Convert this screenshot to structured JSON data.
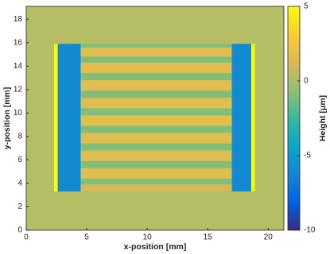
{
  "chart_data": {
    "type": "heatmap",
    "xlabel": "x-position [mm]",
    "ylabel": "y-position [mm]",
    "colorbar_label": "Height [μm]",
    "xlim": [
      0,
      21.3
    ],
    "xticks": [
      0,
      5,
      10,
      15,
      20
    ],
    "ylim": [
      0,
      19.1
    ],
    "yticks": [
      0,
      2,
      4,
      6,
      8,
      10,
      12,
      14,
      16,
      18
    ],
    "clim": [
      -10,
      5
    ],
    "cticks": [
      5,
      0,
      -5,
      -10
    ],
    "colormap": "parula",
    "regions": [
      {
        "x": [
          0,
          21.3
        ],
        "y": [
          0,
          19.1
        ],
        "value": 0.3
      },
      {
        "x": [
          4.5,
          17
        ],
        "y": [
          3.3,
          15.9
        ],
        "value": -1
      },
      {
        "x": [
          4.5,
          17
        ],
        "y": [
          14.8,
          15.6
        ],
        "value": 1.5
      },
      {
        "x": [
          4.5,
          17
        ],
        "y": [
          13.4,
          14.3
        ],
        "value": 1.5
      },
      {
        "x": [
          4.5,
          17
        ],
        "y": [
          11.9,
          12.8
        ],
        "value": 1.5
      },
      {
        "x": [
          4.5,
          17
        ],
        "y": [
          10.4,
          11.3
        ],
        "value": 1.5
      },
      {
        "x": [
          4.5,
          17
        ],
        "y": [
          8.9,
          9.8
        ],
        "value": 1.8
      },
      {
        "x": [
          4.5,
          17
        ],
        "y": [
          7.4,
          8.3
        ],
        "value": 1.5
      },
      {
        "x": [
          4.5,
          17
        ],
        "y": [
          5.9,
          6.8
        ],
        "value": 1.5
      },
      {
        "x": [
          4.5,
          17
        ],
        "y": [
          4.4,
          5.3
        ],
        "value": 1.5
      },
      {
        "x": [
          4.5,
          17
        ],
        "y": [
          3.3,
          3.9
        ],
        "value": 1.2
      },
      {
        "x": [
          2.6,
          4.5
        ],
        "y": [
          3.3,
          15.9
        ],
        "value": -6
      },
      {
        "x": [
          17,
          18.6
        ],
        "y": [
          3.3,
          15.9
        ],
        "value": -6
      },
      {
        "x": [
          2.3,
          2.6
        ],
        "y": [
          3.3,
          15.9
        ],
        "value": 5
      },
      {
        "x": [
          18.6,
          18.9
        ],
        "y": [
          3.3,
          15.9
        ],
        "value": 5
      }
    ]
  }
}
